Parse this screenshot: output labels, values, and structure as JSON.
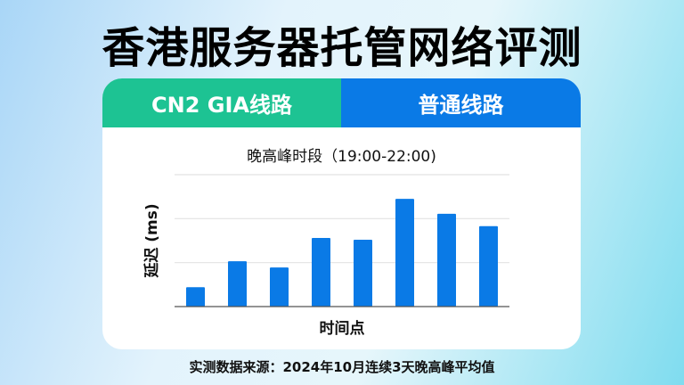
{
  "title": "香港服务器托管网络评测",
  "tabs": [
    {
      "label": "CN2 GIA线路",
      "color": "#1dc393"
    },
    {
      "label": "普通线路",
      "color": "#0a7ae6"
    }
  ],
  "chart_data": {
    "type": "bar",
    "title": "晚高峰时段（19:00-22:00)",
    "xlabel": "时间点",
    "ylabel": "延迟 (ms)",
    "categories": [
      "",
      "",
      "",
      "",
      "",
      "",
      "",
      ""
    ],
    "values": [
      0.44,
      1.03,
      0.89,
      1.56,
      1.52,
      2.45,
      2.11,
      1.83
    ],
    "ylim": [
      0,
      3
    ],
    "grid": true,
    "bar_color": "#0a7ae6"
  },
  "footer": "实测数据来源：2024年10月连续3天晚高峰平均值"
}
